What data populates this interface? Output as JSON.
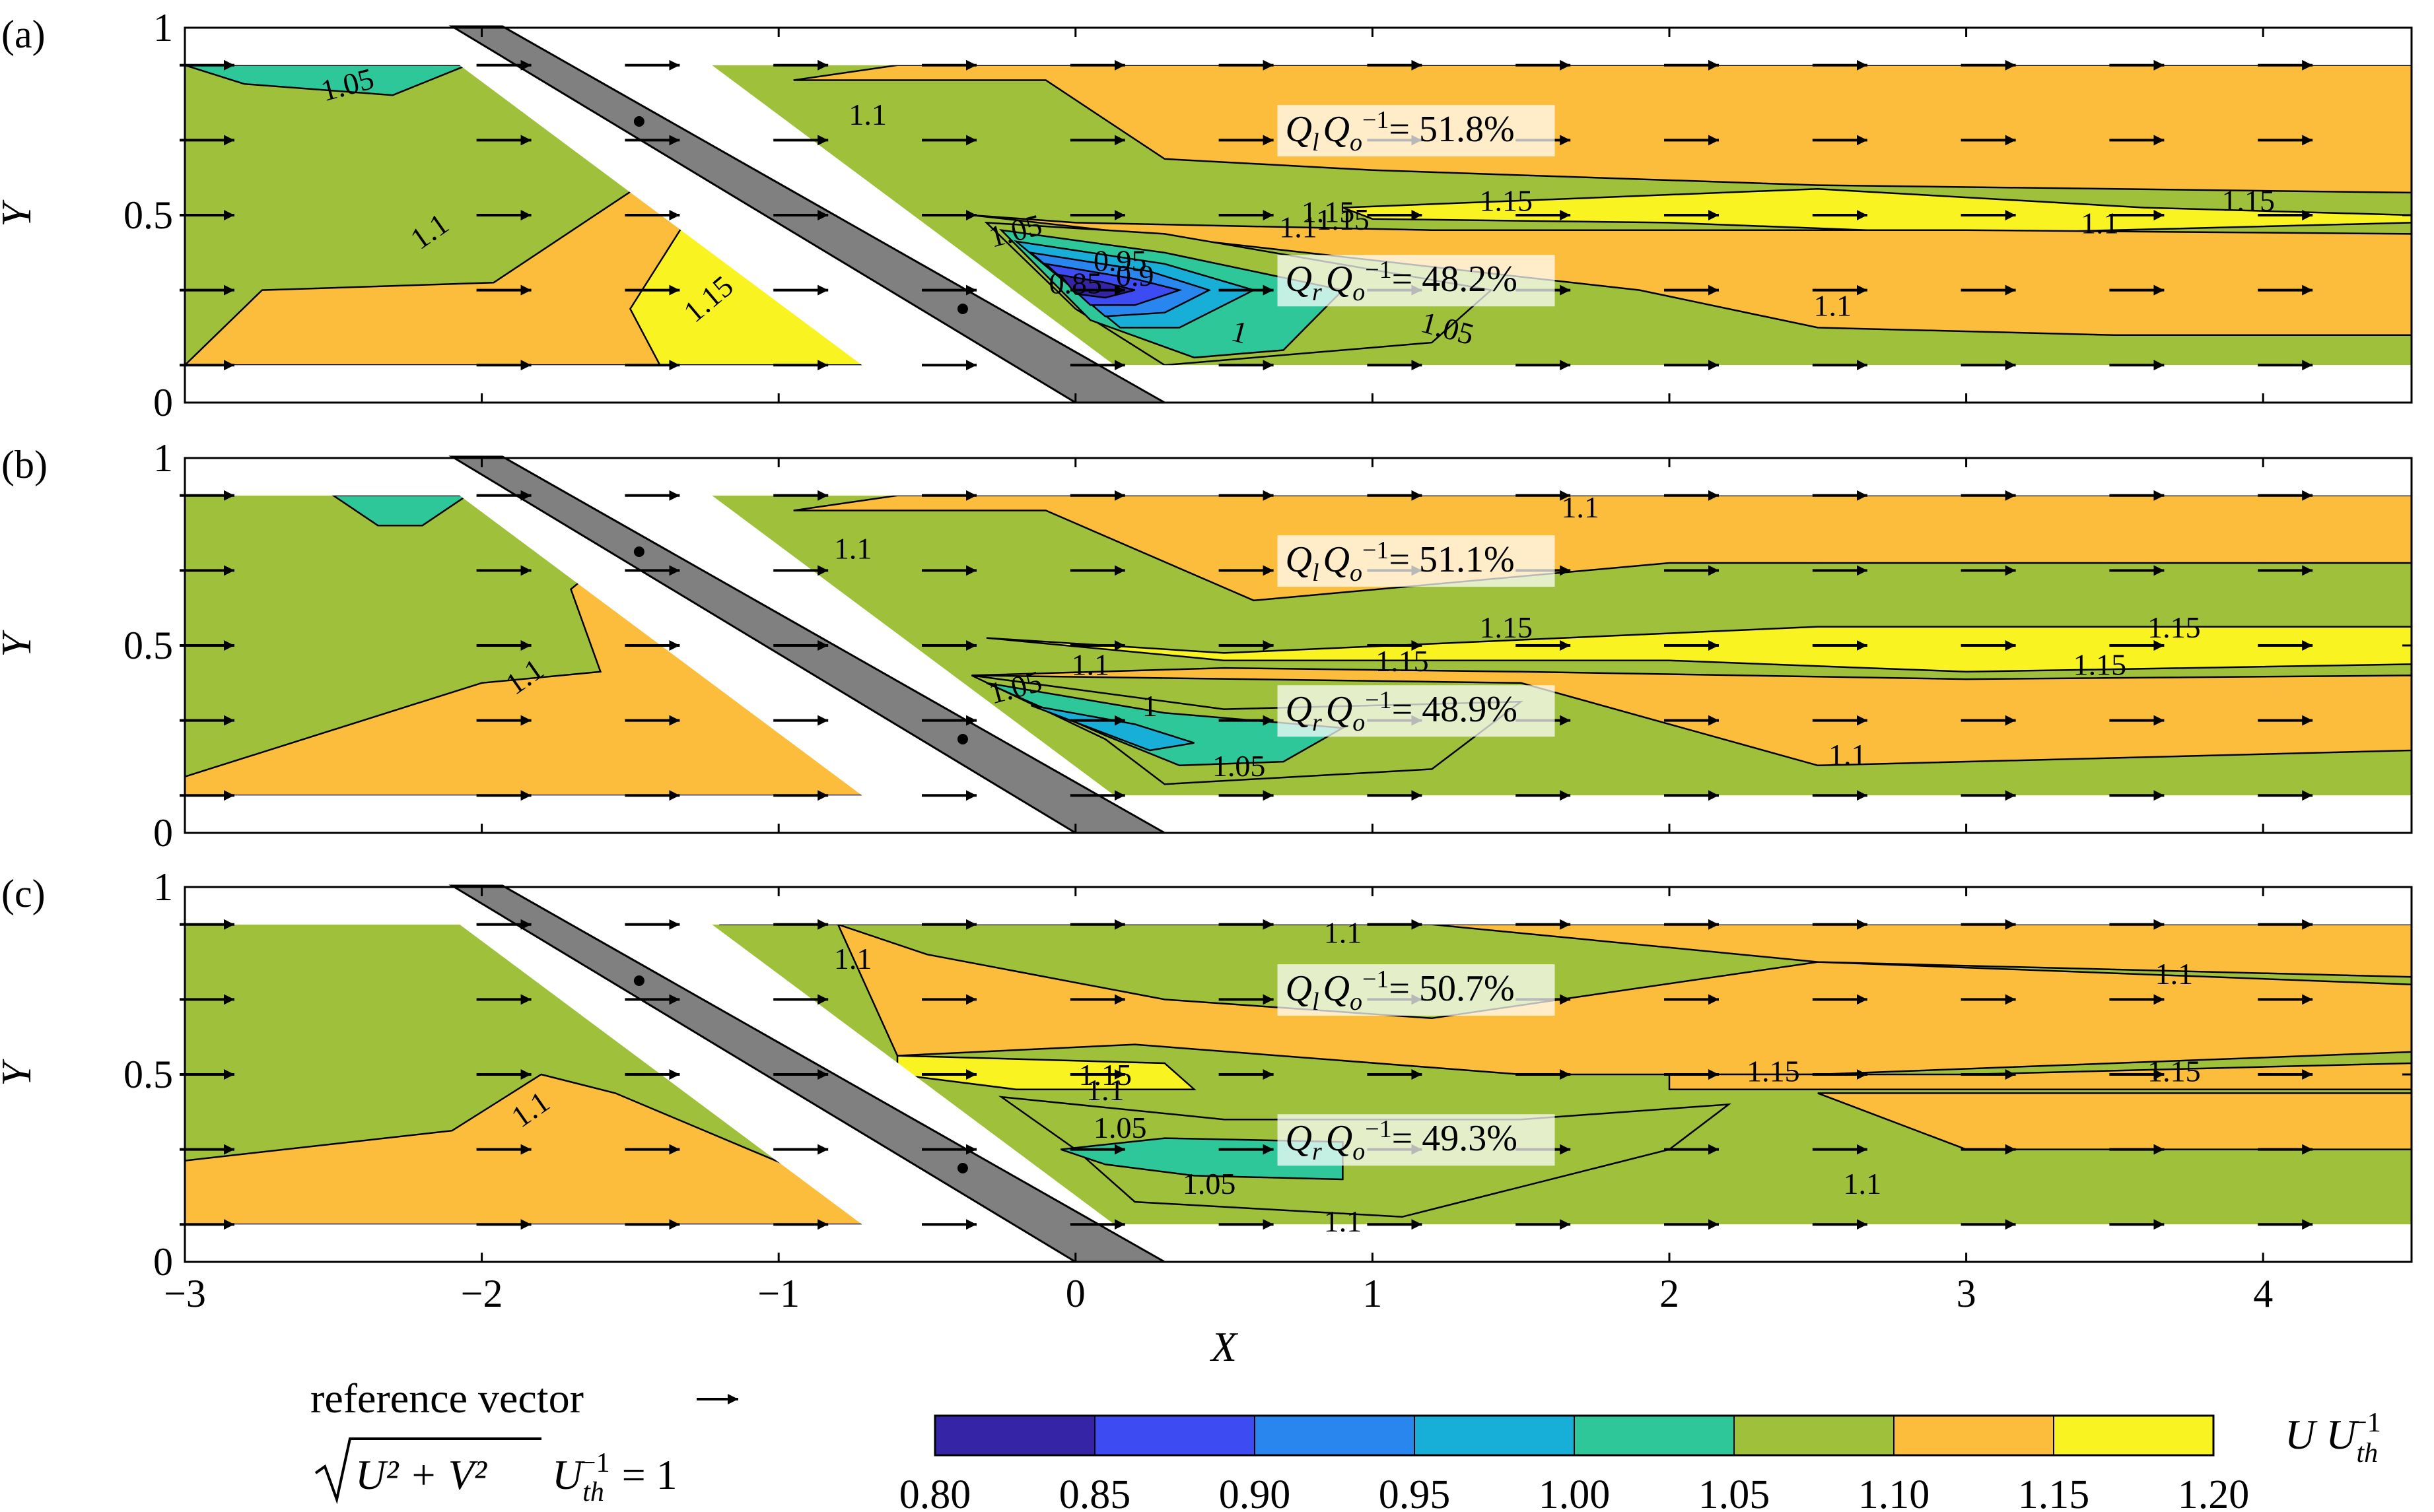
{
  "chart_data": {
    "type": "contour",
    "xlabel": "X",
    "ylabel": "Y",
    "xlim": [
      -3,
      4.5
    ],
    "ylim": [
      0,
      1
    ],
    "xticks": [
      -3,
      -2,
      -1,
      0,
      1,
      2,
      3,
      4
    ],
    "yticks": [
      0,
      0.5,
      1
    ],
    "xtick_labels": [
      "−3",
      "−2",
      "−1",
      "0",
      "1",
      "2",
      "3",
      "4"
    ],
    "ytick_labels": [
      "0",
      "0.5",
      "1"
    ],
    "colorbar": {
      "label": "U U_th^-1",
      "label_main": "U U",
      "label_sub": "th",
      "label_sup": "−1",
      "levels": [
        0.8,
        0.85,
        0.9,
        0.95,
        1.0,
        1.05,
        1.1,
        1.15,
        1.2
      ],
      "tick_labels": [
        "0.80",
        "0.85",
        "0.90",
        "0.95",
        "1.00",
        "1.05",
        "1.10",
        "1.15",
        "1.20"
      ],
      "colors": [
        "#3525a6",
        "#3c4cf2",
        "#2a86ef",
        "#17aed8",
        "#2ec79a",
        "#9fc03a",
        "#fbbd3b",
        "#f9f421"
      ]
    },
    "reference_vector": {
      "label": "reference vector",
      "arrow": "→",
      "formula_main": "U² + V²",
      "formula_rest": "U",
      "formula_sub": "th",
      "formula_sup": "−1",
      "formula_eq": "= 1",
      "magnitude": 1
    },
    "panels": [
      {
        "label": "(a)",
        "flow_split": [
          {
            "prefix": "Q",
            "sub1": "l",
            "mid": "Q",
            "sub2": "o",
            "sup": "−1",
            "value_text": "= 51.8%",
            "value": 51.8
          },
          {
            "prefix": "Q",
            "sub1": "r",
            "mid": "Q",
            "sub2": "o",
            "sup": "−1",
            "value_text": "= 48.2%",
            "value": 48.2
          }
        ],
        "contour_labels": [
          "1.05",
          "1.1",
          "1.1",
          "1.15",
          "1.1",
          "1.15",
          "1.05",
          "0.95",
          "0.85",
          "0.9",
          "1",
          "1.05",
          "1.15",
          "1.15",
          "1.15",
          "1.1",
          "1.1"
        ]
      },
      {
        "label": "(b)",
        "flow_split": [
          {
            "prefix": "Q",
            "sub1": "l",
            "mid": "Q",
            "sub2": "o",
            "sup": "−1",
            "value_text": "= 51.1%",
            "value": 51.1
          },
          {
            "prefix": "Q",
            "sub1": "r",
            "mid": "Q",
            "sub2": "o",
            "sup": "−1",
            "value_text": "= 48.9%",
            "value": 48.9
          }
        ],
        "contour_labels": [
          "1.1",
          "1.1",
          "1.1",
          "1.05",
          "1.1",
          "1",
          "1.05",
          "1.15",
          "1.15",
          "1.15",
          "1.15",
          "1.1"
        ]
      },
      {
        "label": "(c)",
        "flow_split": [
          {
            "prefix": "Q",
            "sub1": "l",
            "mid": "Q",
            "sub2": "o",
            "sup": "−1",
            "value_text": "= 50.7%",
            "value": 50.7
          },
          {
            "prefix": "Q",
            "sub1": "r",
            "mid": "Q",
            "sub2": "o",
            "sup": "−1",
            "value_text": "= 49.3%",
            "value": 49.3
          }
        ],
        "contour_labels": [
          "1.1",
          "1.1",
          "1.1",
          "1.1",
          "1.15",
          "1.1",
          "1.05",
          "1.05",
          "1.15",
          "1.15",
          "1.1",
          "1.1"
        ]
      }
    ]
  }
}
